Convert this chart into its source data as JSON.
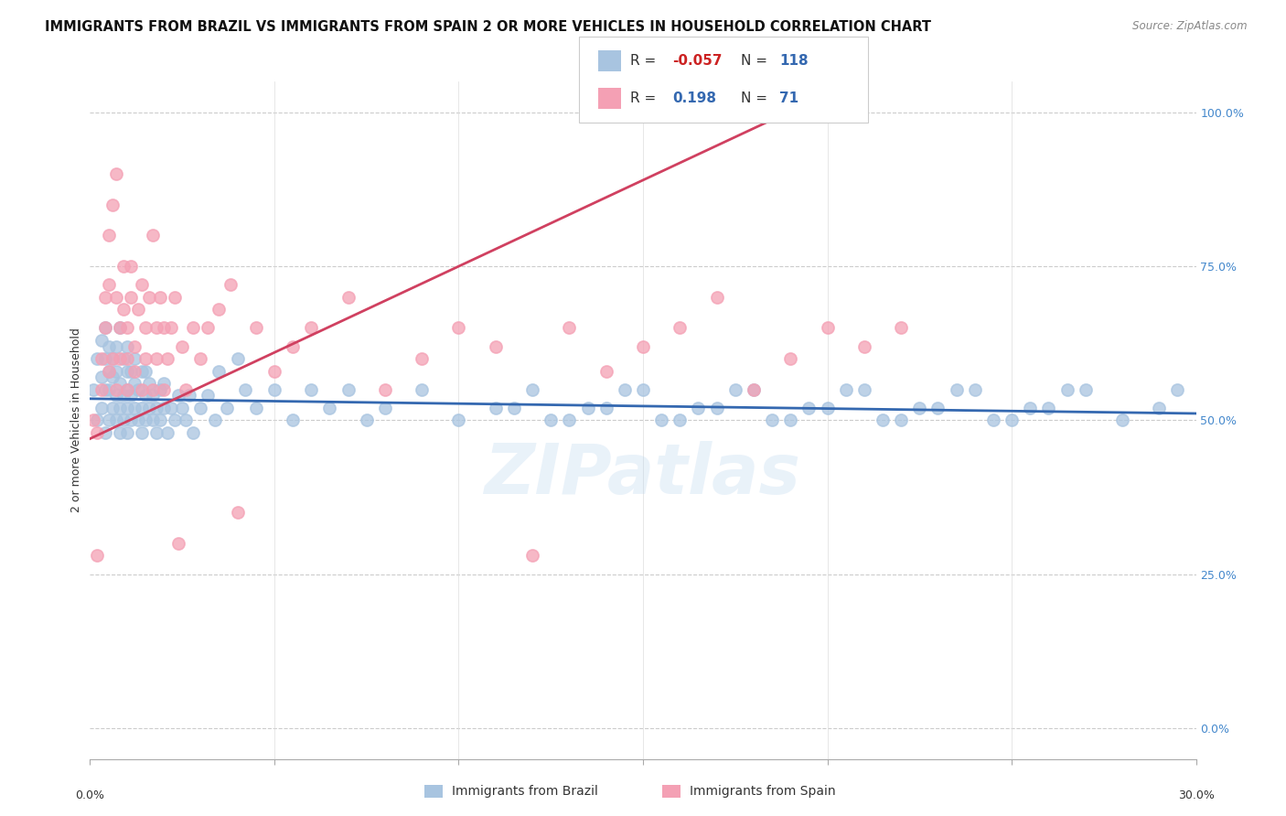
{
  "title": "IMMIGRANTS FROM BRAZIL VS IMMIGRANTS FROM SPAIN 2 OR MORE VEHICLES IN HOUSEHOLD CORRELATION CHART",
  "source": "Source: ZipAtlas.com",
  "ylabel": "2 or more Vehicles in Household",
  "watermark": "ZIPatlas",
  "legend_brazil": "Immigrants from Brazil",
  "legend_spain": "Immigrants from Spain",
  "R_brazil": -0.057,
  "N_brazil": 118,
  "R_spain": 0.198,
  "N_spain": 71,
  "color_brazil": "#a8c4e0",
  "color_spain": "#f4a0b4",
  "line_color_brazil": "#3468b0",
  "line_color_spain": "#d04060",
  "xmin": 0,
  "xmax": 30,
  "ymin": 0,
  "ymax": 100,
  "ytick_vals": [
    0,
    25,
    50,
    75,
    100
  ],
  "ytick_labels": [
    "0.0%",
    "25.0%",
    "50.0%",
    "75.0%",
    "100.0%"
  ],
  "brazil_x": [
    0.1,
    0.2,
    0.2,
    0.3,
    0.3,
    0.3,
    0.4,
    0.4,
    0.4,
    0.4,
    0.5,
    0.5,
    0.5,
    0.5,
    0.6,
    0.6,
    0.6,
    0.7,
    0.7,
    0.7,
    0.7,
    0.8,
    0.8,
    0.8,
    0.8,
    0.9,
    0.9,
    0.9,
    1.0,
    1.0,
    1.0,
    1.0,
    1.0,
    1.1,
    1.1,
    1.1,
    1.2,
    1.2,
    1.2,
    1.3,
    1.3,
    1.4,
    1.4,
    1.4,
    1.5,
    1.5,
    1.5,
    1.6,
    1.6,
    1.7,
    1.7,
    1.8,
    1.8,
    1.9,
    1.9,
    2.0,
    2.0,
    2.1,
    2.2,
    2.3,
    2.4,
    2.5,
    2.6,
    2.7,
    2.8,
    3.0,
    3.2,
    3.4,
    3.5,
    3.7,
    4.0,
    4.2,
    4.5,
    5.0,
    5.5,
    6.0,
    6.5,
    7.0,
    7.5,
    8.0,
    9.0,
    10.0,
    11.0,
    12.0,
    13.0,
    14.0,
    15.0,
    16.0,
    17.0,
    18.0,
    19.0,
    20.0,
    21.0,
    22.0,
    23.0,
    24.0,
    25.0,
    26.0,
    27.0,
    28.0,
    29.0,
    29.5,
    11.5,
    12.5,
    13.5,
    14.5,
    15.5,
    16.5,
    17.5,
    18.5,
    19.5,
    20.5,
    21.5,
    22.5,
    23.5,
    24.5,
    25.5,
    26.5
  ],
  "brazil_y": [
    55,
    50,
    60,
    52,
    57,
    63,
    48,
    55,
    60,
    65,
    50,
    55,
    58,
    62,
    52,
    57,
    60,
    50,
    54,
    58,
    62,
    48,
    52,
    56,
    65,
    50,
    54,
    60,
    48,
    52,
    55,
    58,
    62,
    50,
    54,
    58,
    52,
    56,
    60,
    50,
    55,
    48,
    52,
    58,
    50,
    54,
    58,
    52,
    56,
    50,
    54,
    48,
    52,
    50,
    55,
    52,
    56,
    48,
    52,
    50,
    54,
    52,
    50,
    54,
    48,
    52,
    54,
    50,
    58,
    52,
    60,
    55,
    52,
    55,
    50,
    55,
    52,
    55,
    50,
    52,
    55,
    50,
    52,
    55,
    50,
    52,
    55,
    50,
    52,
    55,
    50,
    52,
    55,
    50,
    52,
    55,
    50,
    52,
    55,
    50,
    52,
    55,
    52,
    50,
    52,
    55,
    50,
    52,
    55,
    50,
    52,
    55,
    50,
    52,
    55,
    50,
    52,
    55
  ],
  "spain_x": [
    0.1,
    0.2,
    0.2,
    0.3,
    0.3,
    0.4,
    0.4,
    0.5,
    0.5,
    0.5,
    0.6,
    0.6,
    0.7,
    0.7,
    0.7,
    0.8,
    0.8,
    0.9,
    0.9,
    1.0,
    1.0,
    1.0,
    1.1,
    1.1,
    1.2,
    1.2,
    1.3,
    1.4,
    1.4,
    1.5,
    1.5,
    1.6,
    1.7,
    1.7,
    1.8,
    1.8,
    1.9,
    2.0,
    2.0,
    2.1,
    2.2,
    2.3,
    2.4,
    2.5,
    2.6,
    2.8,
    3.0,
    3.2,
    3.5,
    3.8,
    4.0,
    4.5,
    5.0,
    5.5,
    6.0,
    7.0,
    8.0,
    9.0,
    10.0,
    11.0,
    12.0,
    13.0,
    14.0,
    15.0,
    16.0,
    17.0,
    18.0,
    19.0,
    20.0,
    21.0,
    22.0
  ],
  "spain_y": [
    50,
    28,
    48,
    55,
    60,
    65,
    70,
    58,
    72,
    80,
    60,
    85,
    70,
    55,
    90,
    60,
    65,
    68,
    75,
    55,
    60,
    65,
    70,
    75,
    58,
    62,
    68,
    55,
    72,
    60,
    65,
    70,
    55,
    80,
    60,
    65,
    70,
    55,
    65,
    60,
    65,
    70,
    30,
    62,
    55,
    65,
    60,
    65,
    68,
    72,
    35,
    65,
    58,
    62,
    65,
    70,
    55,
    60,
    65,
    62,
    28,
    65,
    58,
    62,
    65,
    70,
    55,
    60,
    65,
    62,
    65
  ]
}
